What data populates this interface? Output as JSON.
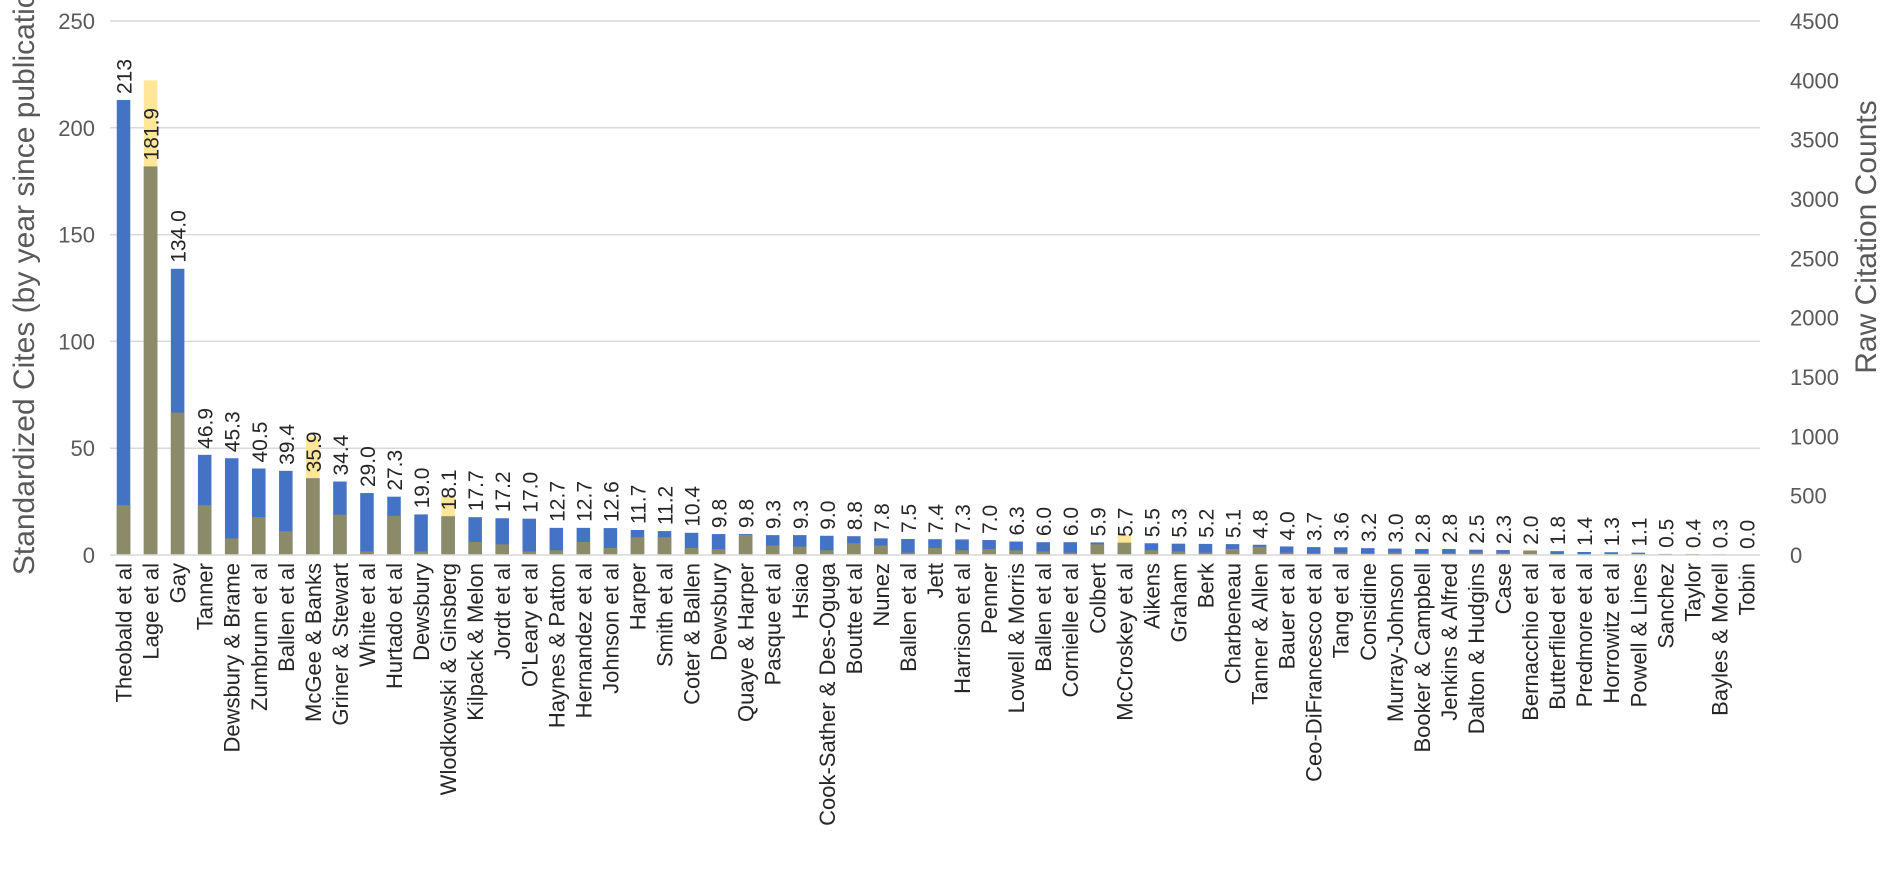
{
  "chart_data": {
    "type": "bar",
    "categories": [
      "Theobald et al",
      "Lage et al",
      "Gay",
      "Tanner",
      "Dewsbury & Brame",
      "Zumbrunn et al",
      "Ballen et al",
      "McGee & Banks",
      "Griner & Stewart",
      "White et al",
      "Hurtado et al",
      "Dewsbury",
      "Wlodkowski & Ginsberg",
      "Kilpack & Melon",
      "Jordt et al",
      "O'Leary et al",
      "Haynes & Patton",
      "Hernandez et al",
      "Johnson et al",
      "Harper",
      "Smith et al",
      "Coter & Ballen",
      "Dewsbury",
      "Quaye & Harper",
      "Pasque et al",
      "Hsiao",
      "Cook-Sather & Des-Oguga",
      "Boutte et al",
      "Nunez",
      "Ballen et al",
      "Jett",
      "Harrison et al",
      "Penner",
      "Lowell & Morris",
      "Ballen et al",
      "Cornielle et al",
      "Colbert",
      "McCroskey et al",
      "Aikens",
      "Graham",
      "Berk",
      "Charbeneau",
      "Tanner & Allen",
      "Bauer et al",
      "Ceo-DiFrancesco et al",
      "Tang et al",
      "Considine",
      "Murray-Johnson",
      "Booker & Campbell",
      "Jenkins & Alfred",
      "Dalton & Hudgins",
      "Case",
      "Bernacchio et al",
      "Butterfiled et al",
      "Predmore et al",
      "Horrowitz et al",
      "Powell & Lines",
      "Sanchez",
      "Taylor",
      "Bayles & Morell",
      "Tobin"
    ],
    "data_labels": [
      "213",
      "181.9",
      "134.0",
      "46.9",
      "45.3",
      "40.5",
      "39.4",
      "35.9",
      "34.4",
      "29.0",
      "27.3",
      "19.0",
      "18.1",
      "17.7",
      "17.2",
      "17.0",
      "12.7",
      "12.7",
      "12.6",
      "11.7",
      "11.2",
      "10.4",
      "9.8",
      "9.8",
      "9.3",
      "9.3",
      "9.0",
      "8.8",
      "7.8",
      "7.5",
      "7.4",
      "7.3",
      "7.0",
      "6.3",
      "6.0",
      "6.0",
      "5.9",
      "5.7",
      "5.5",
      "5.3",
      "5.2",
      "5.1",
      "4.8",
      "4.0",
      "3.7",
      "3.6",
      "3.2",
      "3.0",
      "2.8",
      "2.8",
      "2.5",
      "2.3",
      "2.0",
      "1.8",
      "1.4",
      "1.3",
      "1.1",
      "0.5",
      "0.4",
      "0.3",
      "0.0"
    ],
    "series": [
      {
        "axis": "left",
        "color": "#4472C4",
        "values": [
          213,
          181.9,
          134.0,
          46.9,
          45.3,
          40.5,
          39.4,
          35.9,
          34.4,
          29.0,
          27.3,
          19.0,
          18.1,
          17.7,
          17.2,
          17.0,
          12.7,
          12.7,
          12.6,
          11.7,
          11.2,
          10.4,
          9.8,
          9.8,
          9.3,
          9.3,
          9.0,
          8.8,
          7.8,
          7.5,
          7.4,
          7.3,
          7.0,
          6.3,
          6.0,
          6.0,
          5.9,
          5.7,
          5.5,
          5.3,
          5.2,
          5.1,
          4.8,
          4.0,
          3.7,
          3.6,
          3.2,
          3.0,
          2.8,
          2.8,
          2.5,
          2.3,
          2.0,
          1.8,
          1.4,
          1.3,
          1.1,
          0.5,
          0.4,
          0.3,
          0.0
        ]
      },
      {
        "axis": "right",
        "color": "#FFE699",
        "values": [
          420,
          4000,
          1200,
          420,
          140,
          320,
          200,
          1000,
          340,
          30,
          330,
          30,
          500,
          110,
          90,
          30,
          40,
          110,
          60,
          150,
          150,
          60,
          50,
          170,
          80,
          70,
          40,
          100,
          80,
          20,
          60,
          40,
          50,
          40,
          30,
          20,
          90,
          170,
          40,
          30,
          20,
          50,
          70,
          20,
          15,
          20,
          15,
          20,
          15,
          15,
          20,
          20,
          40,
          10,
          5,
          10,
          10,
          5,
          10,
          5,
          5
        ]
      }
    ],
    "overlap_color": "#8B8B6A",
    "ylabel": "Standardized Cites (by year since publication)",
    "y2label": "Raw Citation Counts",
    "ylim": [
      0,
      250
    ],
    "y2lim": [
      0,
      4500
    ],
    "yticks": [
      "0",
      "50",
      "100",
      "150",
      "200",
      "250"
    ],
    "y2ticks": [
      "0",
      "500",
      "1000",
      "1500",
      "2000",
      "2500",
      "3000",
      "3500",
      "4000",
      "4500"
    ],
    "grid": "horizontal",
    "legend": "none"
  }
}
